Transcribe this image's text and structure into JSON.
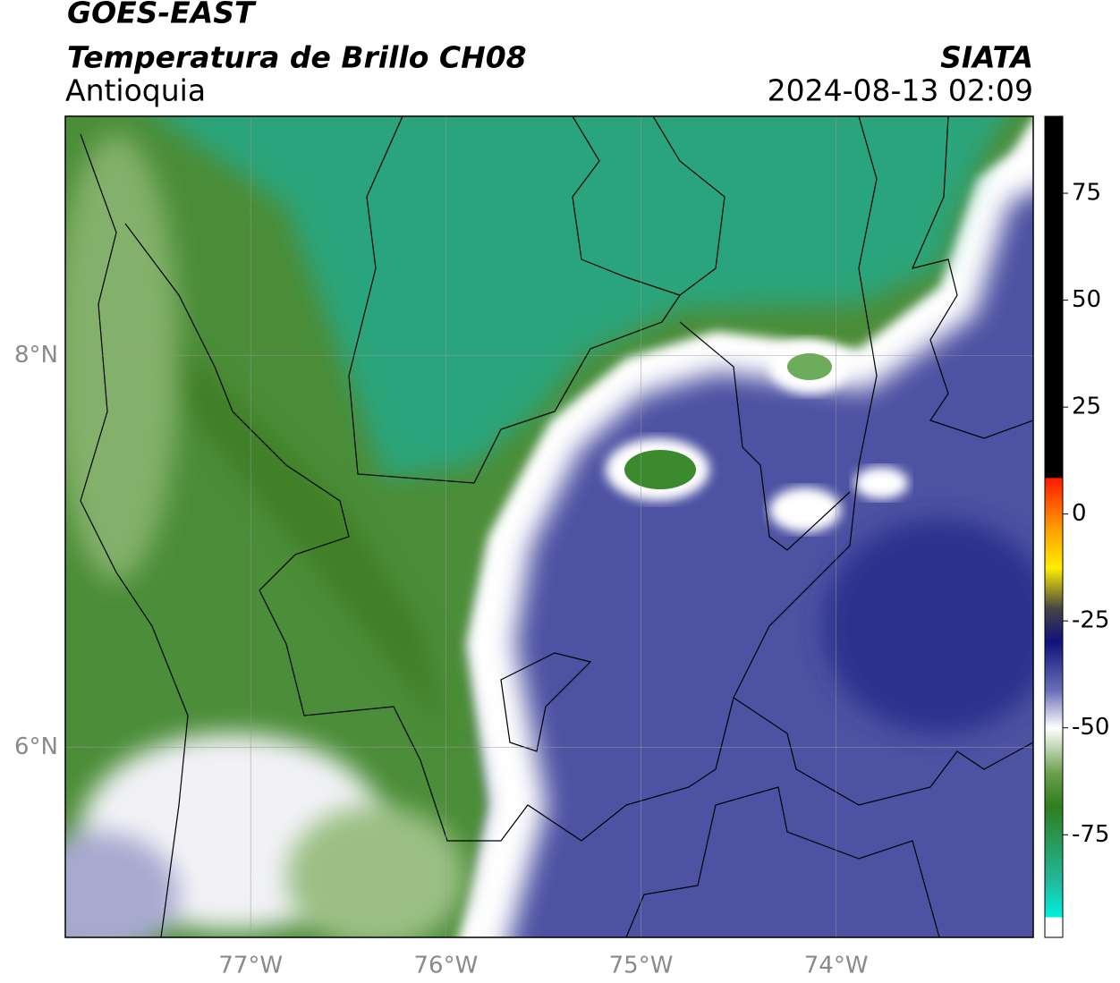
{
  "header": {
    "satellite": "GOES-EAST",
    "product": "Temperatura de Brillo CH08",
    "region": "Antioquia",
    "source": "SIATA",
    "datetime": "2024-08-13 02:09"
  },
  "map": {
    "xlim": [
      -77.95,
      -72.99
    ],
    "ylim": [
      5.03,
      9.22
    ],
    "xticks": [
      {
        "value": -77,
        "label": "77°W"
      },
      {
        "value": -76,
        "label": "76°W"
      },
      {
        "value": -75,
        "label": "75°W"
      },
      {
        "value": -74,
        "label": "74°W"
      }
    ],
    "yticks": [
      {
        "value": 8,
        "label": "8°N"
      },
      {
        "value": 6,
        "label": "6°N"
      }
    ],
    "grid": true
  },
  "colorbar": {
    "ylim": [
      -99,
      93
    ],
    "ticks": [
      75,
      50,
      25,
      0,
      -25,
      -50,
      -75
    ]
  }
}
